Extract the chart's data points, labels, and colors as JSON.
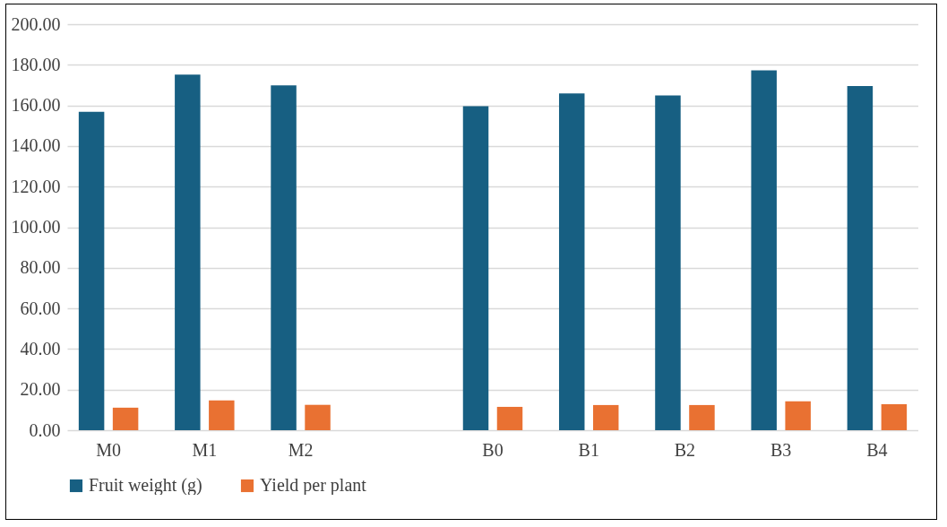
{
  "chart_data": {
    "type": "bar",
    "categories": [
      "M0",
      "M1",
      "M2",
      null,
      "B0",
      "B1",
      "B2",
      "B3",
      "B4"
    ],
    "series": [
      {
        "name": "Fruit weight (g)",
        "color": "#175f82",
        "values": [
          156.8,
          175.2,
          169.9,
          null,
          159.6,
          165.9,
          164.9,
          177.3,
          169.5
        ]
      },
      {
        "name": "Yield per plant",
        "color": "#e97132",
        "values": [
          11.1,
          14.7,
          12.5,
          null,
          11.5,
          12.4,
          12.4,
          14.2,
          12.8
        ]
      }
    ],
    "ylim": [
      0,
      200
    ],
    "yticks": [
      {
        "value": 0,
        "label": "0.00"
      },
      {
        "value": 20,
        "label": "20.00"
      },
      {
        "value": 40,
        "label": "40.00"
      },
      {
        "value": 60,
        "label": "60.00"
      },
      {
        "value": 80,
        "label": "80.00"
      },
      {
        "value": 100,
        "label": "100.00"
      },
      {
        "value": 120,
        "label": "120.00"
      },
      {
        "value": 140,
        "label": "140.00"
      },
      {
        "value": 160,
        "label": "160.00"
      },
      {
        "value": 180,
        "label": "180.00"
      },
      {
        "value": 200,
        "label": "200.00"
      }
    ],
    "grid": "y",
    "legend": "bottom"
  }
}
